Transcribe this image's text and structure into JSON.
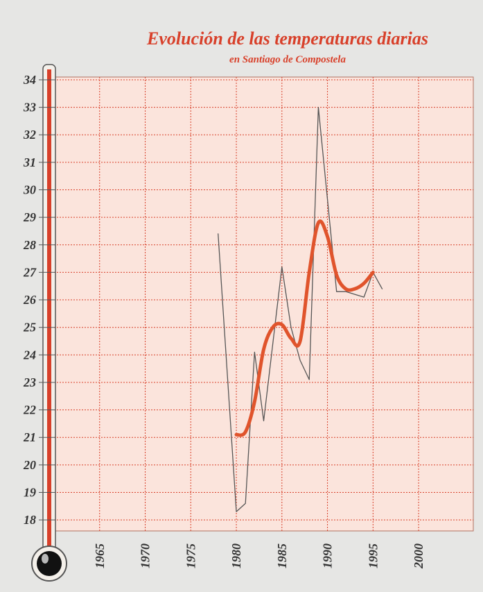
{
  "chart_data": {
    "type": "line",
    "title": "Evolución de las temperaturas diarias",
    "subtitle": "en Santiago de Compostela",
    "xlim": [
      1960,
      2006
    ],
    "ylim": [
      17.6,
      34.1
    ],
    "xticks": [
      1965,
      1970,
      1975,
      1980,
      1985,
      1990,
      1995,
      2000
    ],
    "yticks": [
      18,
      19,
      20,
      21,
      22,
      23,
      24,
      25,
      26,
      27,
      28,
      29,
      30,
      31,
      32,
      33,
      34
    ],
    "grid": true,
    "series": [
      {
        "color": "#555555",
        "smooth": false,
        "width": 1.3,
        "x": [
          1978,
          1980,
          1981,
          1982,
          1983,
          1985,
          1986,
          1987,
          1988,
          1989,
          1991,
          1992,
          1994,
          1995,
          1996
        ],
        "values": [
          28.4,
          18.3,
          18.6,
          24.1,
          21.6,
          27.2,
          25.0,
          23.8,
          23.1,
          33.0,
          26.3,
          26.3,
          26.1,
          27.0,
          26.4
        ]
      },
      {
        "color": "#e0542c",
        "smooth": true,
        "width": 5,
        "x": [
          1980,
          1981,
          1982,
          1983,
          1984,
          1985,
          1986,
          1987,
          1988,
          1989,
          1990,
          1991,
          1992,
          1993,
          1994,
          1995
        ],
        "values": [
          21.1,
          21.2,
          22.3,
          24.2,
          25.0,
          25.1,
          24.6,
          24.5,
          27.0,
          28.8,
          28.3,
          26.9,
          26.4,
          26.4,
          26.6,
          27.0
        ]
      }
    ]
  }
}
